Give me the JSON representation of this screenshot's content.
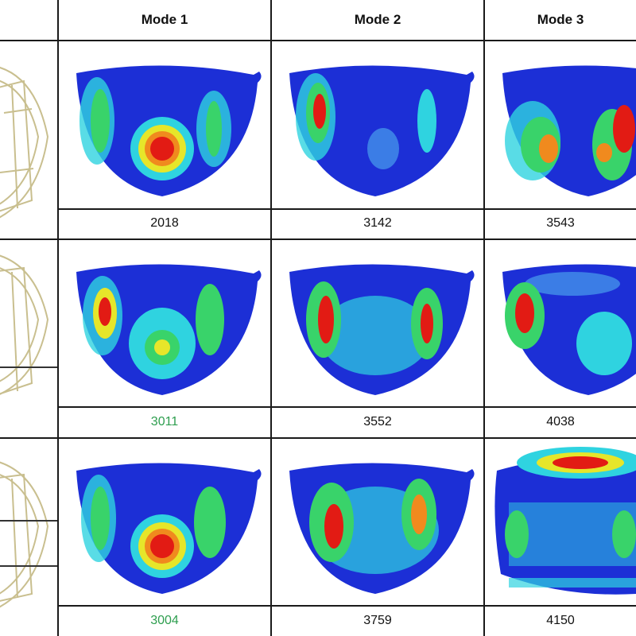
{
  "header": {
    "columns": [
      "Mode 1",
      "Mode 2",
      "Mode 3"
    ]
  },
  "rows": [
    {
      "values": [
        "2018",
        "3142",
        "3543"
      ],
      "highlight": [
        false,
        false,
        false
      ]
    },
    {
      "values": [
        "3011",
        "3552",
        "4038"
      ],
      "highlight": [
        true,
        false,
        false
      ]
    },
    {
      "values": [
        "3004",
        "3759",
        "4150"
      ],
      "highlight": [
        true,
        false,
        false
      ]
    }
  ],
  "colors": {
    "border": "#1a1a1a",
    "highlight_text": "#2e9e4f",
    "contour_blue": "#1c2fd6",
    "contour_cyan": "#2fd3e0",
    "contour_green": "#39d36a",
    "contour_yellow": "#e6e62a",
    "contour_red": "#e21b14",
    "sketch_line": "#c9bf8f"
  }
}
